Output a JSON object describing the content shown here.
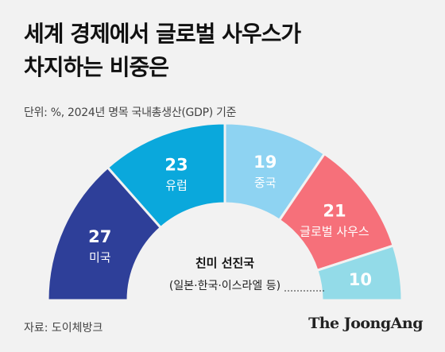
{
  "title_lines": [
    "세계 경제에서 글로벌 사우스가",
    "차지하는 비중은"
  ],
  "unit": "단위: %, 2024년 명목 국내총생산(GDP) 기준",
  "source": "자료: 도이체방크",
  "brand": "The JoongAng",
  "chart_data": {
    "type": "pie",
    "subtype": "semicircle-donut",
    "unit": "%",
    "slices": [
      {
        "label": "미국",
        "value": 27,
        "color": "#2e3f99",
        "text_color": "#ffffff"
      },
      {
        "label": "유럽",
        "value": 23,
        "color": "#0aa8dc",
        "text_color": "#ffffff"
      },
      {
        "label": "중국",
        "value": 19,
        "color": "#8ed3f2",
        "text_color": "#ffffff"
      },
      {
        "label": "글로벌 사우스",
        "value": 21,
        "color": "#f6707a",
        "text_color": "#ffffff"
      },
      {
        "label": "친미 선진국",
        "value": 10,
        "color": "#93dbe8",
        "text_color": "#ffffff"
      }
    ],
    "annotation": {
      "line1": "친미 선진국",
      "line2": "(일본·한국·이스라엘 등)"
    }
  }
}
